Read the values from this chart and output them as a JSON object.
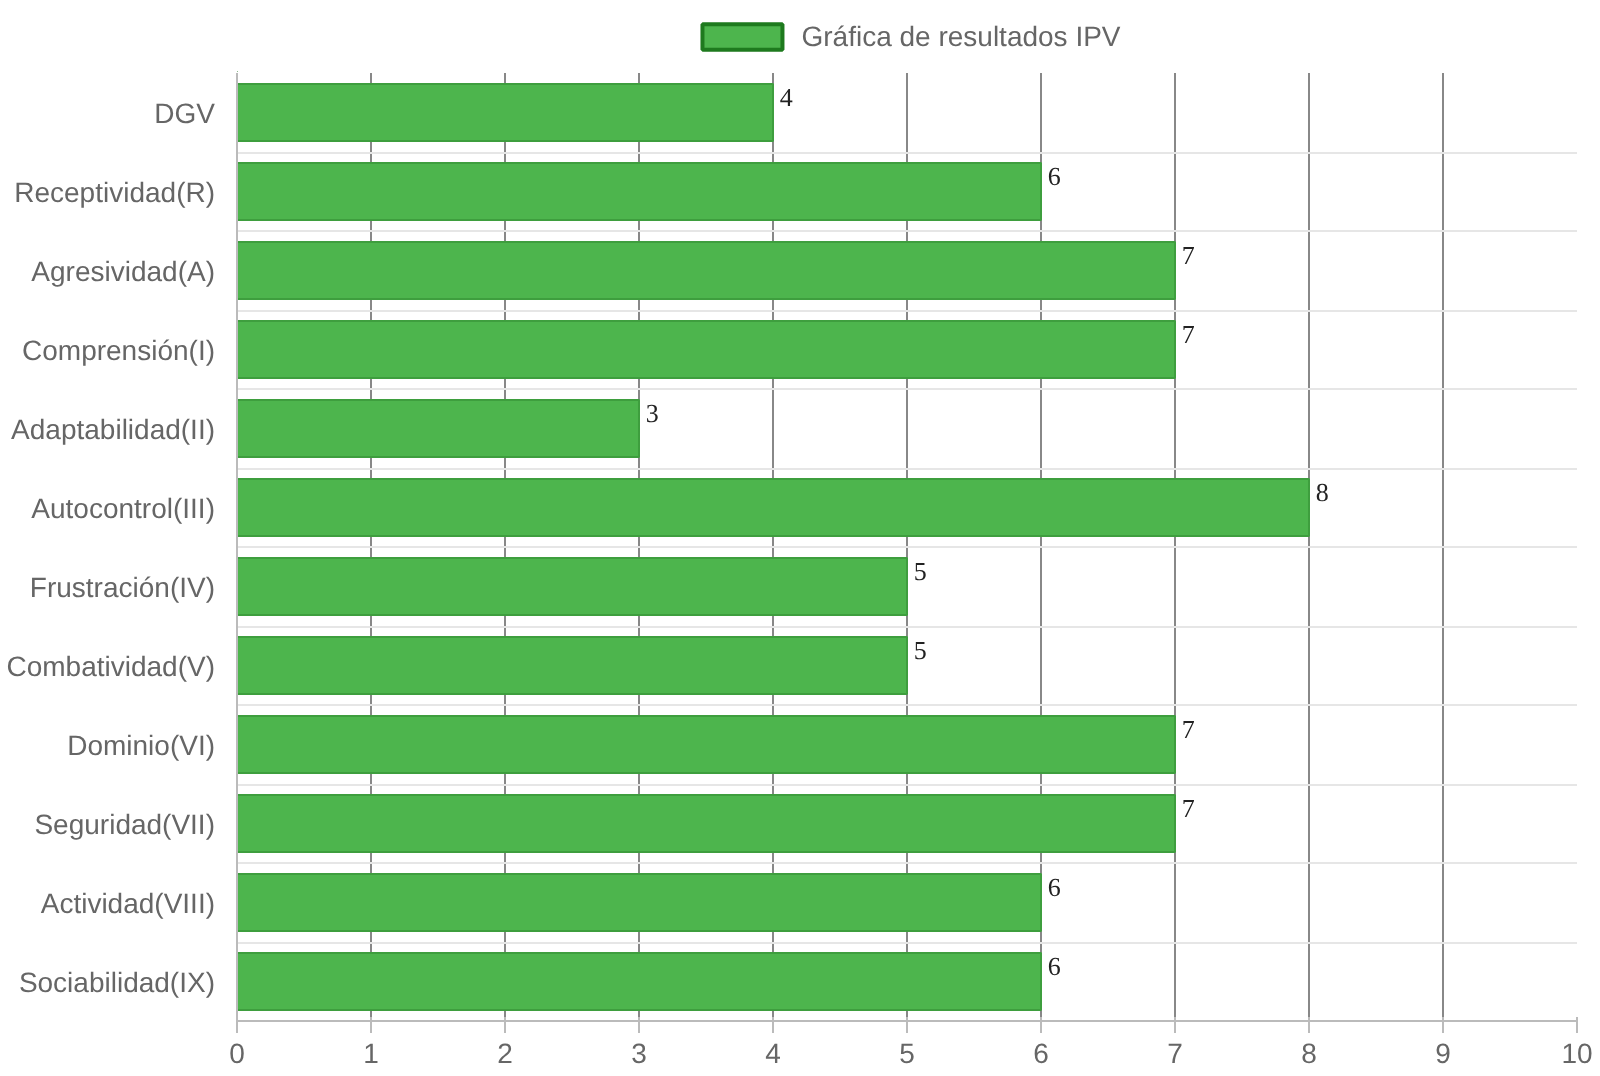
{
  "chart_data": {
    "type": "bar",
    "orientation": "horizontal",
    "categories": [
      "DGV",
      "Receptividad(R)",
      "Agresividad(A)",
      "Comprensión(I)",
      "Adaptabilidad(II)",
      "Autocontrol(III)",
      "Frustración(IV)",
      "Combatividad(V)",
      "Dominio(VI)",
      "Seguridad(VII)",
      "Actividad(VIII)",
      "Sociabilidad(IX)"
    ],
    "series": [
      {
        "name": "Gráfica de resultados IPV",
        "color": "#4db54d",
        "values": [
          4,
          6,
          7,
          7,
          3,
          8,
          5,
          5,
          7,
          7,
          6,
          6
        ]
      }
    ],
    "xlim": [
      0,
      10
    ],
    "xticks": [
      0,
      1,
      2,
      3,
      4,
      5,
      6,
      7,
      8,
      9,
      10
    ],
    "grid": true,
    "legend": "top",
    "data_labels": true
  }
}
